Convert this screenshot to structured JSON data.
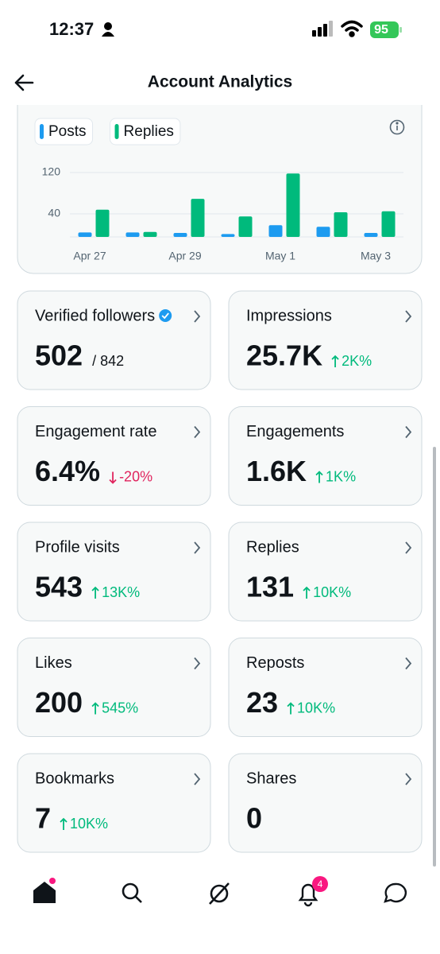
{
  "status_bar": {
    "time": "12:37",
    "battery": "95"
  },
  "header": {
    "title": "Account Analytics"
  },
  "chart_data": {
    "type": "bar",
    "categories": [
      "Apr 27",
      null,
      "Apr 29",
      null,
      "May 1",
      null,
      "May 3"
    ],
    "series": [
      {
        "name": "Posts",
        "color": "#1d9bf0",
        "values": [
          4,
          4,
          3,
          1,
          18,
          15,
          3
        ]
      },
      {
        "name": "Replies",
        "color": "#00ba7c",
        "values": [
          48,
          5,
          69,
          35,
          118,
          43,
          45
        ]
      }
    ],
    "ylim": [
      0,
      140
    ],
    "yticks": [
      40,
      120
    ],
    "grid": true
  },
  "cards": [
    {
      "label": "Verified followers",
      "value": "502",
      "secondary": "/ 842",
      "verified": true
    },
    {
      "label": "Impressions",
      "value": "25.7K",
      "delta": "2K%",
      "trend": "up"
    },
    {
      "label": "Engagement rate",
      "value": "6.4%",
      "delta": "-20%",
      "trend": "down"
    },
    {
      "label": "Engagements",
      "value": "1.6K",
      "delta": "1K%",
      "trend": "up"
    },
    {
      "label": "Profile visits",
      "value": "543",
      "delta": "13K%",
      "trend": "up"
    },
    {
      "label": "Replies",
      "value": "131",
      "delta": "10K%",
      "trend": "up"
    },
    {
      "label": "Likes",
      "value": "200",
      "delta": "545%",
      "trend": "up"
    },
    {
      "label": "Reposts",
      "value": "23",
      "delta": "10K%",
      "trend": "up"
    },
    {
      "label": "Bookmarks",
      "value": "7",
      "delta": "10K%",
      "trend": "up"
    },
    {
      "label": "Shares",
      "value": "0"
    }
  ],
  "nav": {
    "notification_badge": "4"
  }
}
